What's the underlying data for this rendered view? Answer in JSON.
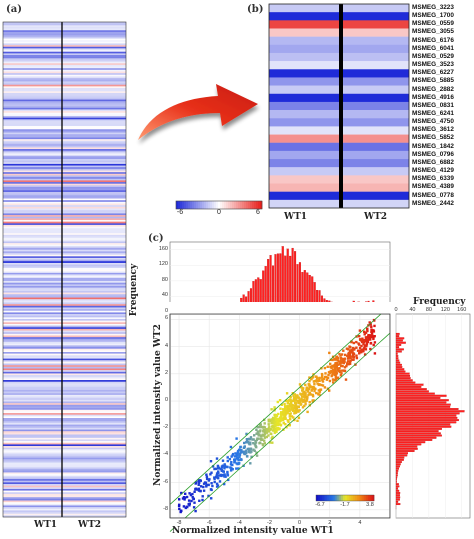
{
  "panels": {
    "a": "(a)",
    "b": "(b)",
    "c": "(c)"
  },
  "samples": [
    "WT1",
    "WT2"
  ],
  "colors": {
    "low": "#1f2bd8",
    "mid": "#ffffff",
    "high": "#e8201c",
    "arrow": "#e03010",
    "scatter_green": "#2ca02c",
    "hist_red": "#ff2020"
  },
  "chart_data": [
    {
      "id": "heatmap-full",
      "type": "heatmap",
      "title": "",
      "columns": [
        "WT1",
        "WT2"
      ],
      "rows": 300,
      "value_range": [
        -6,
        6
      ]
    },
    {
      "id": "heatmap-zoom",
      "type": "heatmap",
      "title": "",
      "columns": [
        "WT1",
        "WT2"
      ],
      "colorbar": {
        "ticks": [
          "-6",
          "0",
          "6"
        ],
        "range": [
          -6,
          6
        ]
      },
      "rows": [
        {
          "gene": "MSMEG_3223",
          "v": [
            -1.5,
            -1.5
          ]
        },
        {
          "gene": "MSMEG_1700",
          "v": [
            -6,
            -6
          ]
        },
        {
          "gene": "MSMEG_0559",
          "v": [
            5,
            5
          ]
        },
        {
          "gene": "MSMEG_3055",
          "v": [
            1.5,
            1.5
          ]
        },
        {
          "gene": "MSMEG_6176",
          "v": [
            -2,
            -2
          ]
        },
        {
          "gene": "MSMEG_6041",
          "v": [
            -2.5,
            -2.5
          ]
        },
        {
          "gene": "MSMEG_0529",
          "v": [
            -1.8,
            -1.8
          ]
        },
        {
          "gene": "MSMEG_3523",
          "v": [
            -0.8,
            -0.8
          ]
        },
        {
          "gene": "MSMEG_6227",
          "v": [
            -6,
            -6
          ]
        },
        {
          "gene": "MSMEG_5885",
          "v": [
            -3,
            -3
          ]
        },
        {
          "gene": "MSMEG_2882",
          "v": [
            -1.5,
            -1.5
          ]
        },
        {
          "gene": "MSMEG_4916",
          "v": [
            -6,
            -6
          ]
        },
        {
          "gene": "MSMEG_0831",
          "v": [
            -3.5,
            -3.5
          ]
        },
        {
          "gene": "MSMEG_6241",
          "v": [
            -2,
            -2
          ]
        },
        {
          "gene": "MSMEG_4750",
          "v": [
            -3,
            -3
          ]
        },
        {
          "gene": "MSMEG_3612",
          "v": [
            -0.8,
            -0.8
          ]
        },
        {
          "gene": "MSMEG_5852",
          "v": [
            3,
            3
          ]
        },
        {
          "gene": "MSMEG_1842",
          "v": [
            -4,
            -4
          ]
        },
        {
          "gene": "MSMEG_0796",
          "v": [
            -2.5,
            -2.5
          ]
        },
        {
          "gene": "MSMEG_6882",
          "v": [
            -3.5,
            -3.5
          ]
        },
        {
          "gene": "MSMEG_4129",
          "v": [
            -1.5,
            -1.5
          ]
        },
        {
          "gene": "MSMEG_6339",
          "v": [
            1.5,
            1.5
          ]
        },
        {
          "gene": "MSMEG_4389",
          "v": [
            2,
            2
          ]
        },
        {
          "gene": "MSMEG_0778",
          "v": [
            -6,
            -6
          ]
        },
        {
          "gene": "MSMEG_2442",
          "v": [
            -1.2,
            -1.2
          ]
        }
      ]
    },
    {
      "id": "scatter",
      "type": "scatter",
      "xlabel": "Normalized intensity value WT1",
      "ylabel": "Normalized intensity value WT2",
      "xlim": [
        -8.6,
        6
      ],
      "ylim": [
        -8.6,
        6.4
      ],
      "xticks": [
        "-8",
        "-6",
        "-4",
        "-2",
        "0",
        "2",
        "4"
      ],
      "yticks": [
        "-8",
        "-6",
        "-4",
        "-2",
        "0",
        "2",
        "4",
        "6"
      ],
      "grid": true,
      "reference_lines": [
        {
          "offset": 1
        },
        {
          "offset": -1
        }
      ],
      "colorbar": {
        "ticks": [
          "-6.7",
          "-1.7",
          "3.8"
        ],
        "range": [
          -6.7,
          3.8
        ]
      },
      "points_approx": {
        "count": 900,
        "x_range": [
          -8,
          5
        ],
        "y_equals_x_spread": 0.5
      }
    },
    {
      "id": "hist-top",
      "type": "bar",
      "ylabel": "Frequency",
      "yticks": [
        "0",
        "40",
        "80",
        "120",
        "160"
      ],
      "ylim": [
        0,
        180
      ],
      "x_range": [
        -8,
        5
      ],
      "bins": 80,
      "peak": 160,
      "peak_at": -1
    },
    {
      "id": "hist-right",
      "type": "bar",
      "xlabel": "Frequency",
      "xticks": [
        "0",
        "40",
        "80",
        "120",
        "160"
      ],
      "xlim": [
        0,
        180
      ],
      "y_range": [
        -8,
        5
      ],
      "bins": 80,
      "peak": 160,
      "peak_at": -1
    }
  ]
}
